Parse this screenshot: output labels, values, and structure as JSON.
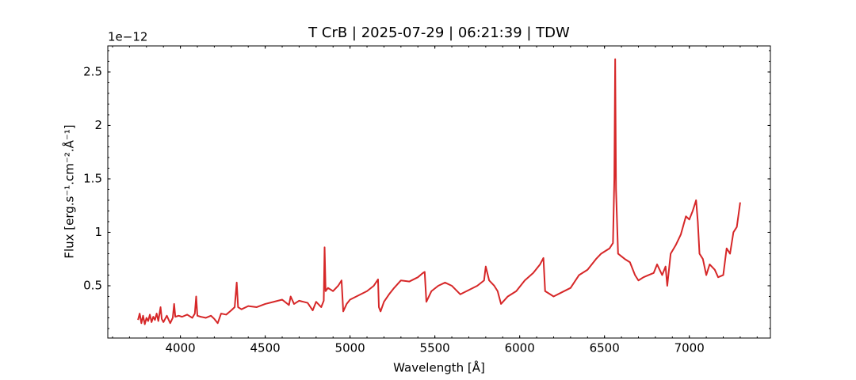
{
  "chart_data": {
    "type": "line",
    "title": "T CrB | 2025-07-29 | 06:21:39 | TDW",
    "x_label": "Wavelength [Å]",
    "y_label": "Flux [erg.s⁻¹.cm⁻².Å⁻¹]",
    "y_offset_label": "1e−12",
    "xlim": [
      3572,
      7478
    ],
    "ylim": [
      0.011,
      2.744
    ],
    "xticks": [
      4000,
      4500,
      5000,
      5500,
      6000,
      6500,
      7000
    ],
    "yticks": [
      0.5,
      1.0,
      1.5,
      2.0,
      2.5
    ],
    "x_minor_step": 100,
    "y_minor_step": 0.1,
    "tick_direction": "in",
    "series": [
      {
        "name": "T CrB",
        "color": "#d62728",
        "x": [
          3750,
          3760,
          3770,
          3780,
          3790,
          3800,
          3810,
          3820,
          3830,
          3840,
          3850,
          3860,
          3870,
          3883,
          3890,
          3900,
          3920,
          3940,
          3955,
          3963,
          3970,
          3990,
          4010,
          4040,
          4070,
          4085,
          4093,
          4100,
          4120,
          4150,
          4180,
          4200,
          4220,
          4240,
          4270,
          4300,
          4320,
          4332,
          4340,
          4360,
          4400,
          4450,
          4500,
          4550,
          4600,
          4640,
          4650,
          4670,
          4700,
          4750,
          4780,
          4800,
          4830,
          4845,
          4850,
          4856,
          4870,
          4900,
          4930,
          4950,
          4960,
          4980,
          5000,
          5050,
          5100,
          5140,
          5165,
          5170,
          5180,
          5200,
          5230,
          5260,
          5300,
          5350,
          5400,
          5430,
          5440,
          5450,
          5480,
          5520,
          5560,
          5600,
          5650,
          5700,
          5750,
          5790,
          5800,
          5820,
          5850,
          5870,
          5890,
          5930,
          5980,
          6030,
          6080,
          6120,
          6140,
          6150,
          6180,
          6200,
          6250,
          6300,
          6350,
          6400,
          6450,
          6480,
          6500,
          6530,
          6550,
          6558,
          6563,
          6568,
          6580,
          6620,
          6650,
          6680,
          6700,
          6730,
          6760,
          6790,
          6810,
          6840,
          6860,
          6870,
          6890,
          6920,
          6950,
          6980,
          7000,
          7020,
          7040,
          7050,
          7060,
          7080,
          7100,
          7120,
          7150,
          7170,
          7200,
          7220,
          7240,
          7260,
          7280,
          7300
        ],
        "values": [
          0.18,
          0.24,
          0.15,
          0.22,
          0.14,
          0.2,
          0.17,
          0.23,
          0.16,
          0.21,
          0.18,
          0.24,
          0.17,
          0.3,
          0.19,
          0.16,
          0.22,
          0.15,
          0.2,
          0.33,
          0.21,
          0.22,
          0.21,
          0.23,
          0.2,
          0.24,
          0.4,
          0.22,
          0.21,
          0.2,
          0.22,
          0.19,
          0.15,
          0.24,
          0.23,
          0.27,
          0.3,
          0.53,
          0.3,
          0.28,
          0.31,
          0.3,
          0.33,
          0.35,
          0.37,
          0.32,
          0.4,
          0.33,
          0.36,
          0.34,
          0.27,
          0.35,
          0.3,
          0.36,
          0.86,
          0.45,
          0.48,
          0.45,
          0.5,
          0.55,
          0.26,
          0.33,
          0.37,
          0.41,
          0.45,
          0.5,
          0.56,
          0.3,
          0.26,
          0.35,
          0.42,
          0.48,
          0.55,
          0.54,
          0.58,
          0.62,
          0.63,
          0.35,
          0.45,
          0.5,
          0.53,
          0.5,
          0.42,
          0.46,
          0.5,
          0.55,
          0.68,
          0.55,
          0.5,
          0.45,
          0.33,
          0.4,
          0.45,
          0.55,
          0.62,
          0.7,
          0.76,
          0.45,
          0.42,
          0.4,
          0.44,
          0.48,
          0.6,
          0.65,
          0.75,
          0.8,
          0.82,
          0.85,
          0.9,
          1.5,
          2.62,
          1.4,
          0.8,
          0.75,
          0.72,
          0.6,
          0.55,
          0.58,
          0.6,
          0.62,
          0.7,
          0.6,
          0.68,
          0.5,
          0.8,
          0.88,
          0.98,
          1.15,
          1.12,
          1.2,
          1.3,
          1.1,
          0.8,
          0.75,
          0.6,
          0.7,
          0.65,
          0.58,
          0.6,
          0.85,
          0.8,
          1.0,
          1.05,
          1.28
        ]
      }
    ]
  }
}
